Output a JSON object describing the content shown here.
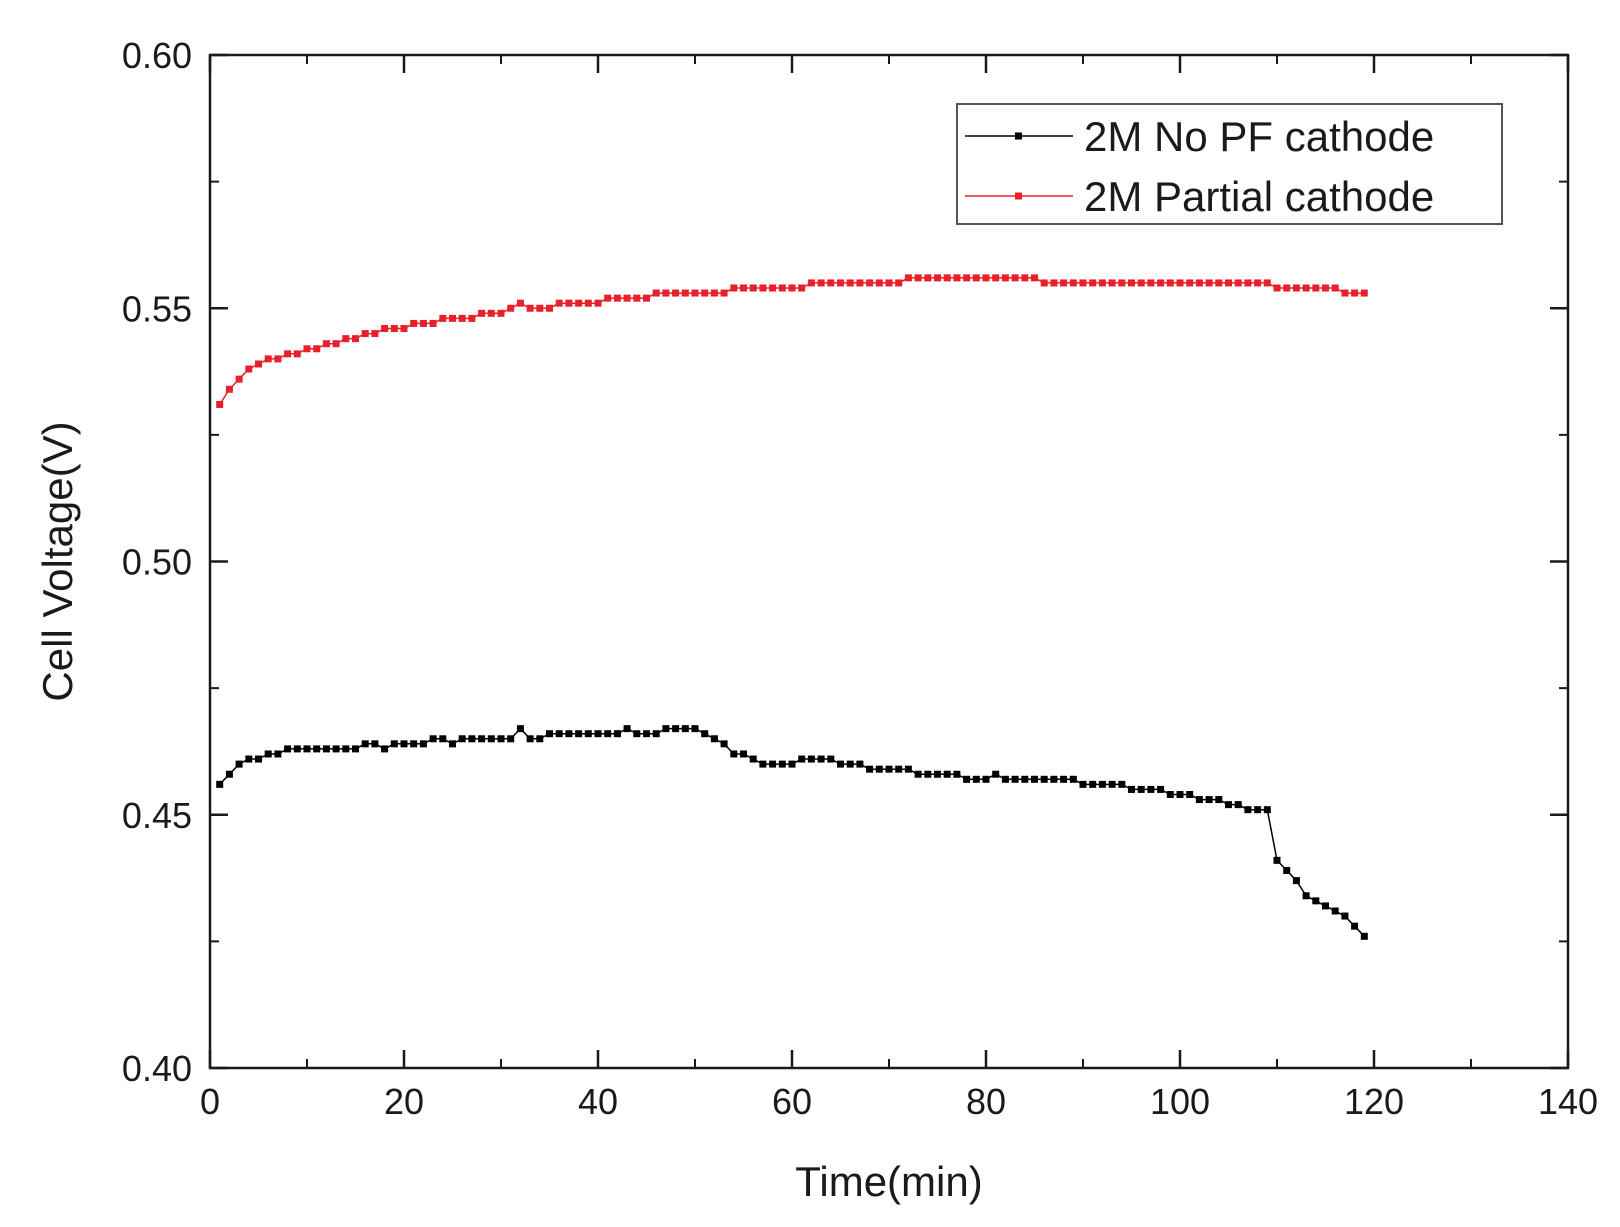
{
  "chart_data": {
    "type": "line",
    "title": "",
    "xlabel": "Time(min)",
    "ylabel": "Cell Voltage(V)",
    "xlim": [
      0,
      140
    ],
    "ylim": [
      0.4,
      0.6
    ],
    "xticks": [
      "0",
      "20",
      "40",
      "60",
      "80",
      "100",
      "120",
      "140"
    ],
    "yticks": [
      "0.40",
      "0.45",
      "0.50",
      "0.55",
      "0.60"
    ],
    "xtick_values": [
      0,
      20,
      40,
      60,
      80,
      100,
      120,
      140
    ],
    "ytick_values": [
      0.4,
      0.45,
      0.5,
      0.55,
      0.6
    ],
    "legend_position": "top-right",
    "series": [
      {
        "name": "2M No PF cathode",
        "color": "#000000",
        "x": [
          1,
          2,
          3,
          4,
          5,
          6,
          7,
          8,
          9,
          10,
          11,
          12,
          13,
          14,
          15,
          16,
          17,
          18,
          19,
          20,
          21,
          22,
          23,
          24,
          25,
          26,
          27,
          28,
          29,
          30,
          31,
          32,
          33,
          34,
          35,
          36,
          37,
          38,
          39,
          40,
          41,
          42,
          43,
          44,
          45,
          46,
          47,
          48,
          49,
          50,
          51,
          52,
          53,
          54,
          55,
          56,
          57,
          58,
          59,
          60,
          61,
          62,
          63,
          64,
          65,
          66,
          67,
          68,
          69,
          70,
          71,
          72,
          73,
          74,
          75,
          76,
          77,
          78,
          79,
          80,
          81,
          82,
          83,
          84,
          85,
          86,
          87,
          88,
          89,
          90,
          91,
          92,
          93,
          94,
          95,
          96,
          97,
          98,
          99,
          100,
          101,
          102,
          103,
          104,
          105,
          106,
          107,
          108,
          109,
          110,
          111,
          112,
          113,
          114,
          115,
          116,
          117,
          118,
          119
        ],
        "values": [
          0.456,
          0.458,
          0.46,
          0.461,
          0.461,
          0.462,
          0.462,
          0.463,
          0.463,
          0.463,
          0.463,
          0.463,
          0.463,
          0.463,
          0.463,
          0.464,
          0.464,
          0.463,
          0.464,
          0.464,
          0.464,
          0.464,
          0.465,
          0.465,
          0.464,
          0.465,
          0.465,
          0.465,
          0.465,
          0.465,
          0.465,
          0.467,
          0.465,
          0.465,
          0.466,
          0.466,
          0.466,
          0.466,
          0.466,
          0.466,
          0.466,
          0.466,
          0.467,
          0.466,
          0.466,
          0.466,
          0.467,
          0.467,
          0.467,
          0.467,
          0.466,
          0.465,
          0.464,
          0.462,
          0.462,
          0.461,
          0.46,
          0.46,
          0.46,
          0.46,
          0.461,
          0.461,
          0.461,
          0.461,
          0.46,
          0.46,
          0.46,
          0.459,
          0.459,
          0.459,
          0.459,
          0.459,
          0.458,
          0.458,
          0.458,
          0.458,
          0.458,
          0.457,
          0.457,
          0.457,
          0.458,
          0.457,
          0.457,
          0.457,
          0.457,
          0.457,
          0.457,
          0.457,
          0.457,
          0.456,
          0.456,
          0.456,
          0.456,
          0.456,
          0.455,
          0.455,
          0.455,
          0.455,
          0.454,
          0.454,
          0.454,
          0.453,
          0.453,
          0.453,
          0.452,
          0.452,
          0.451,
          0.451,
          0.451,
          0.441,
          0.439,
          0.437,
          0.434,
          0.433,
          0.432,
          0.431,
          0.43,
          0.428,
          0.426
        ]
      },
      {
        "name": "2M Partial cathode",
        "color": "#e8202a",
        "x": [
          1,
          2,
          3,
          4,
          5,
          6,
          7,
          8,
          9,
          10,
          11,
          12,
          13,
          14,
          15,
          16,
          17,
          18,
          19,
          20,
          21,
          22,
          23,
          24,
          25,
          26,
          27,
          28,
          29,
          30,
          31,
          32,
          33,
          34,
          35,
          36,
          37,
          38,
          39,
          40,
          41,
          42,
          43,
          44,
          45,
          46,
          47,
          48,
          49,
          50,
          51,
          52,
          53,
          54,
          55,
          56,
          57,
          58,
          59,
          60,
          61,
          62,
          63,
          64,
          65,
          66,
          67,
          68,
          69,
          70,
          71,
          72,
          73,
          74,
          75,
          76,
          77,
          78,
          79,
          80,
          81,
          82,
          83,
          84,
          85,
          86,
          87,
          88,
          89,
          90,
          91,
          92,
          93,
          94,
          95,
          96,
          97,
          98,
          99,
          100,
          101,
          102,
          103,
          104,
          105,
          106,
          107,
          108,
          109,
          110,
          111,
          112,
          113,
          114,
          115,
          116,
          117,
          118,
          119
        ],
        "values": [
          0.531,
          0.534,
          0.536,
          0.538,
          0.539,
          0.54,
          0.54,
          0.541,
          0.541,
          0.542,
          0.542,
          0.543,
          0.543,
          0.544,
          0.544,
          0.545,
          0.545,
          0.546,
          0.546,
          0.546,
          0.547,
          0.547,
          0.547,
          0.548,
          0.548,
          0.548,
          0.548,
          0.549,
          0.549,
          0.549,
          0.55,
          0.551,
          0.55,
          0.55,
          0.55,
          0.551,
          0.551,
          0.551,
          0.551,
          0.551,
          0.552,
          0.552,
          0.552,
          0.552,
          0.552,
          0.553,
          0.553,
          0.553,
          0.553,
          0.553,
          0.553,
          0.553,
          0.553,
          0.554,
          0.554,
          0.554,
          0.554,
          0.554,
          0.554,
          0.554,
          0.554,
          0.555,
          0.555,
          0.555,
          0.555,
          0.555,
          0.555,
          0.555,
          0.555,
          0.555,
          0.555,
          0.556,
          0.556,
          0.556,
          0.556,
          0.556,
          0.556,
          0.556,
          0.556,
          0.556,
          0.556,
          0.556,
          0.556,
          0.556,
          0.556,
          0.555,
          0.555,
          0.555,
          0.555,
          0.555,
          0.555,
          0.555,
          0.555,
          0.555,
          0.555,
          0.555,
          0.555,
          0.555,
          0.555,
          0.555,
          0.555,
          0.555,
          0.555,
          0.555,
          0.555,
          0.555,
          0.555,
          0.555,
          0.555,
          0.554,
          0.554,
          0.554,
          0.554,
          0.554,
          0.554,
          0.554,
          0.553,
          0.553,
          0.553
        ]
      }
    ]
  }
}
